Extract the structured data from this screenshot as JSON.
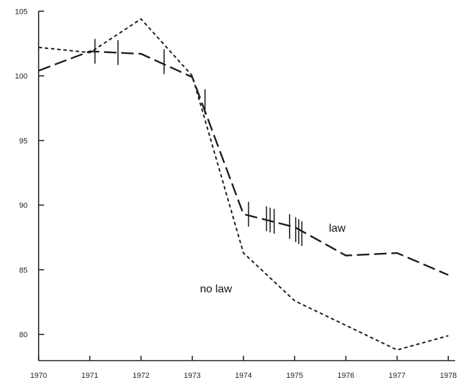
{
  "chart_data": {
    "type": "line",
    "title": "",
    "xlabel": "",
    "ylabel": "",
    "xlim": [
      1970,
      1978
    ],
    "ylim": [
      78,
      105
    ],
    "grid": false,
    "legend": "none",
    "x_ticks": [
      1970,
      1971,
      1972,
      1973,
      1974,
      1975,
      1976,
      1977,
      1978
    ],
    "x_tick_labels": [
      "1970",
      "1971",
      "1972",
      "1973",
      "1974",
      "1975",
      "1976",
      "1977",
      "1978"
    ],
    "y_ticks": [
      80,
      85,
      90,
      95,
      100,
      105
    ],
    "y_tick_labels": [
      "80",
      "85",
      "90",
      "95",
      "100",
      "105"
    ],
    "series": [
      {
        "name": "law",
        "line_style": "long-dash",
        "color": "#1a1a1a",
        "x": [
          1970,
          1971,
          1972,
          1973,
          1974,
          1975,
          1976,
          1977,
          1978
        ],
        "y": [
          100.4,
          101.9,
          101.7,
          99.9,
          89.3,
          88.3,
          86.1,
          86.3,
          84.6
        ]
      },
      {
        "name": "no law",
        "line_style": "short-dash",
        "color": "#1a1a1a",
        "x": [
          1970,
          1971,
          1972,
          1973,
          1974,
          1975,
          1976,
          1977,
          1978
        ],
        "y": [
          102.2,
          101.8,
          104.4,
          100.0,
          86.3,
          82.6,
          80.7,
          78.8,
          79.9
        ]
      }
    ],
    "law_change_marks": [
      {
        "x": 1971.1,
        "y": 101.9
      },
      {
        "x": 1971.55,
        "y": 101.8
      },
      {
        "x": 1972.45,
        "y": 101.1
      },
      {
        "x": 1973.25,
        "y": 98.0
      },
      {
        "x": 1974.1,
        "y": 89.3
      },
      {
        "x": 1974.45,
        "y": 88.95
      },
      {
        "x": 1974.52,
        "y": 88.85
      },
      {
        "x": 1974.6,
        "y": 88.75
      },
      {
        "x": 1974.9,
        "y": 88.35
      },
      {
        "x": 1975.02,
        "y": 88.1
      },
      {
        "x": 1975.08,
        "y": 87.95
      },
      {
        "x": 1975.14,
        "y": 87.8
      }
    ]
  }
}
